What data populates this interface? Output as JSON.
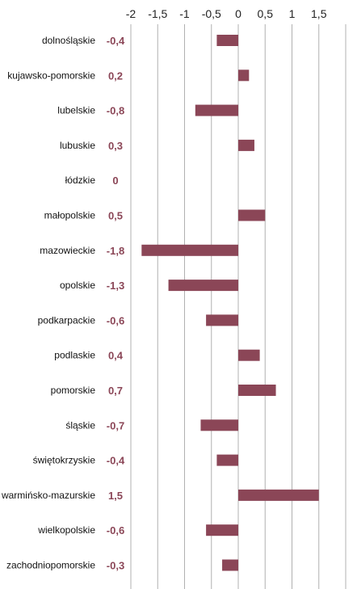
{
  "chart_data": {
    "type": "bar",
    "orientation": "horizontal",
    "title": "",
    "xlabel": "",
    "ylabel": "",
    "xlim": [
      -2,
      2
    ],
    "x_ticks": [
      -2,
      -1.5,
      -1,
      -0.5,
      0,
      0.5,
      1,
      1.5
    ],
    "x_tick_labels": [
      "-2",
      "-1,5",
      "-1",
      "-0,5",
      "0",
      "0,5",
      "1",
      "1,5"
    ],
    "axis_position": "top",
    "grid": true,
    "legend": "none",
    "colors": {
      "bar": "#8b4657",
      "value_label": "#8b4657",
      "grid": "#b0b0b0"
    },
    "categories": [
      "dolnośląskie",
      "kujawsko-pomorskie",
      "lubelskie",
      "lubuskie",
      "łódzkie",
      "małopolskie",
      "mazowieckie",
      "opolskie",
      "podkarpackie",
      "podlaskie",
      "pomorskie",
      "śląskie",
      "świętokrzyskie",
      "warmińsko-mazurskie",
      "wielkopolskie",
      "zachodniopomorskie"
    ],
    "values": [
      -0.4,
      0.2,
      -0.8,
      0.3,
      0,
      0.5,
      -1.8,
      -1.3,
      -0.6,
      0.4,
      0.7,
      -0.7,
      -0.4,
      1.5,
      -0.6,
      -0.3
    ],
    "value_labels": [
      "-0,4",
      "0,2",
      "-0,8",
      "0,3",
      "0",
      "0,5",
      "-1,8",
      "-1,3",
      "-0,6",
      "0,4",
      "0,7",
      "-0,7",
      "-0,4",
      "1,5",
      "-0,6",
      "-0,3"
    ]
  }
}
